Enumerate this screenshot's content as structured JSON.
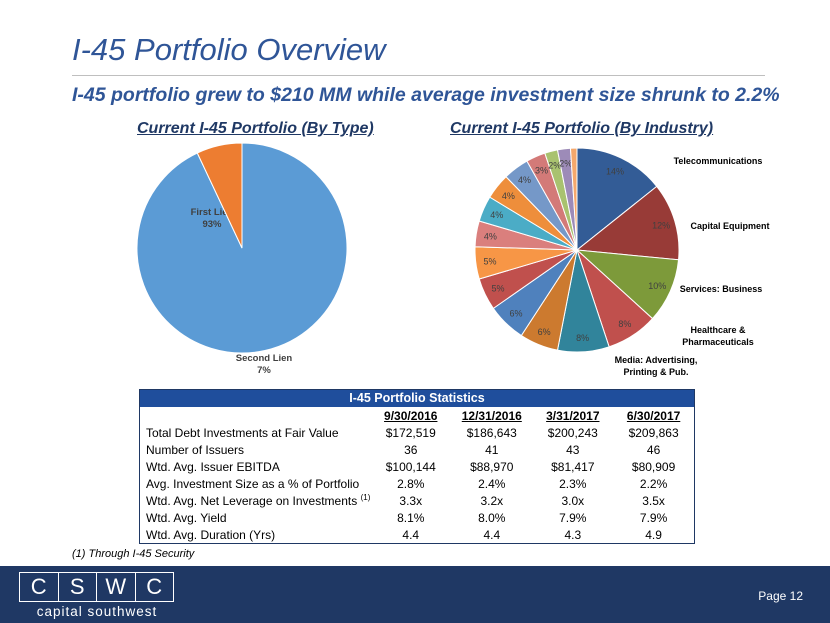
{
  "slide": {
    "title": "I-45 Portfolio Overview",
    "subtitle": "I-45 portfolio grew to $210 MM while average investment size shrunk to 2.2%",
    "footnote": "(1) Through I-45 Security",
    "page_label": "Page 12"
  },
  "logo": {
    "letters": [
      "C",
      "S",
      "W",
      "C"
    ],
    "tagline": "capital southwest"
  },
  "chart_data": [
    {
      "type": "pie",
      "title": "Current I-45 Portfolio (By Type)",
      "slices": [
        {
          "label": "First Lien",
          "value": 93,
          "display": "93%",
          "color": "#5b9bd5"
        },
        {
          "label": "Second Lien",
          "value": 7,
          "display": "7%",
          "color": "#ed7d31"
        }
      ]
    },
    {
      "type": "pie",
      "title": "Current I-45 Portfolio (By Industry)",
      "slices": [
        {
          "label": "Telecommunications",
          "value": 14,
          "display": "14%",
          "color": "#335c96"
        },
        {
          "label": "Capital Equipment",
          "value": 12,
          "display": "12%",
          "color": "#983b37"
        },
        {
          "label": "Services: Business",
          "value": 10,
          "display": "10%",
          "color": "#7d9a3a"
        },
        {
          "label": "Healthcare & Pharmaceuticals",
          "value": 8,
          "display": "8%",
          "color": "#c0504d"
        },
        {
          "label": "Media: Advertising, Printing & Pub.",
          "value": 8,
          "display": "8%",
          "color": "#31849b"
        },
        {
          "label": "",
          "value": 6,
          "display": "6%",
          "color": "#cc7a2f"
        },
        {
          "label": "",
          "value": 6,
          "display": "6%",
          "color": "#4f81bd"
        },
        {
          "label": "",
          "value": 5,
          "display": "5%",
          "color": "#c0504d"
        },
        {
          "label": "",
          "value": 5,
          "display": "5%",
          "color": "#f79646"
        },
        {
          "label": "",
          "value": 4,
          "display": "4%",
          "color": "#da7f7d"
        },
        {
          "label": "",
          "value": 4,
          "display": "4%",
          "color": "#4bacc6"
        },
        {
          "label": "",
          "value": 4,
          "display": "4%",
          "color": "#ee8e3b"
        },
        {
          "label": "",
          "value": 4,
          "display": "4%",
          "color": "#7598c8"
        },
        {
          "label": "",
          "value": 3,
          "display": "3%",
          "color": "#d37a78"
        },
        {
          "label": "",
          "value": 2,
          "display": "2%",
          "color": "#a9c26f"
        },
        {
          "label": "",
          "value": 2,
          "display": "2%",
          "color": "#9d8bb8"
        },
        {
          "label": "",
          "value": 1,
          "display": "",
          "color": "#f5a86c"
        }
      ]
    }
  ],
  "stats_table": {
    "title": "I-45 Portfolio Statistics",
    "columns": [
      "9/30/2016",
      "12/31/2016",
      "3/31/2017",
      "6/30/2017"
    ],
    "rows": [
      {
        "label": "Total Debt Investments at Fair Value",
        "sup": "",
        "values": [
          "$172,519",
          "$186,643",
          "$200,243",
          "$209,863"
        ]
      },
      {
        "label": "Number of Issuers",
        "sup": "",
        "values": [
          "36",
          "41",
          "43",
          "46"
        ]
      },
      {
        "label": "Wtd. Avg. Issuer EBITDA",
        "sup": "",
        "values": [
          "$100,144",
          "$88,970",
          "$81,417",
          "$80,909"
        ]
      },
      {
        "label": "Avg. Investment Size as a % of Portfolio",
        "sup": "",
        "values": [
          "2.8%",
          "2.4%",
          "2.3%",
          "2.2%"
        ]
      },
      {
        "label": "Wtd. Avg. Net Leverage on Investments",
        "sup": "(1)",
        "values": [
          "3.3x",
          "3.2x",
          "3.0x",
          "3.5x"
        ]
      },
      {
        "label": "Wtd. Avg. Yield",
        "sup": "",
        "values": [
          "8.1%",
          "8.0%",
          "7.9%",
          "7.9%"
        ]
      },
      {
        "label": "Wtd. Avg. Duration (Yrs)",
        "sup": "",
        "values": [
          "4.4",
          "4.4",
          "4.3",
          "4.9"
        ]
      }
    ]
  }
}
